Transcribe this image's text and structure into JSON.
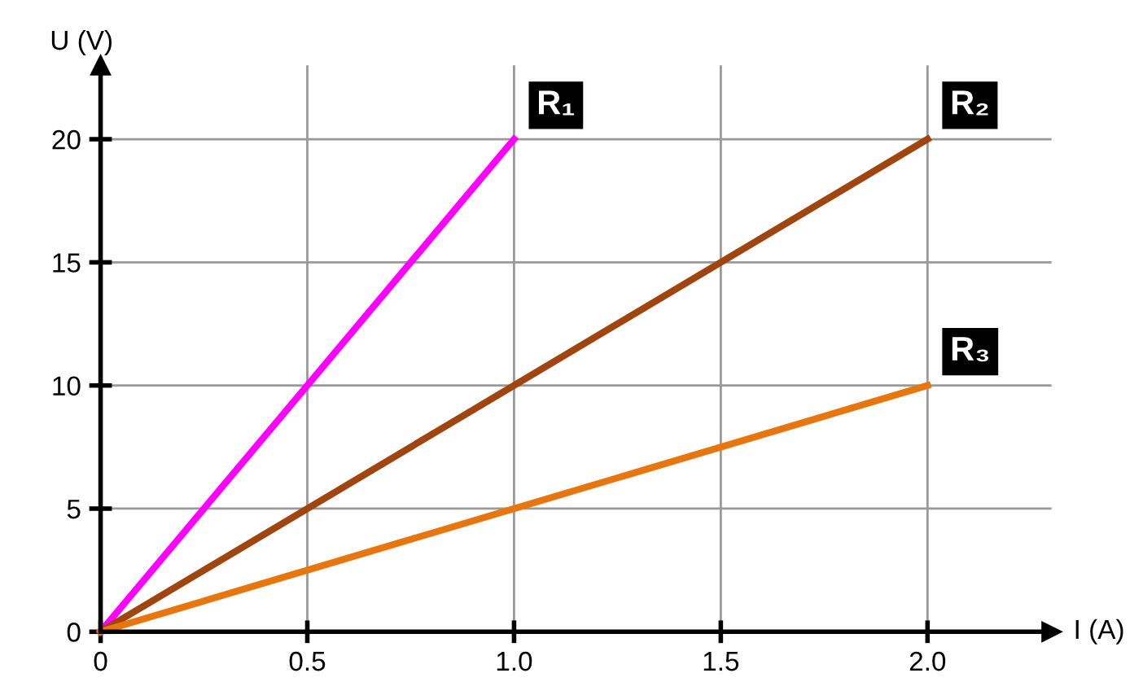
{
  "chart_data": {
    "type": "line",
    "xlabel": "I (A)",
    "ylabel": "U (V)",
    "x": [
      0,
      1,
      2
    ],
    "series": [
      {
        "name": "R₁",
        "color": "#ff00ff",
        "values": [
          0,
          20,
          null
        ]
      },
      {
        "name": "R₂",
        "color": "#a0450f",
        "values": [
          0,
          10,
          20
        ]
      },
      {
        "name": "R₃",
        "color": "#e8760e",
        "values": [
          0,
          5,
          10
        ]
      }
    ],
    "xlim": [
      0,
      2.3
    ],
    "ylim": [
      0,
      23
    ],
    "xticks": [
      0,
      0.5,
      {
        "value": 1,
        "label": "1.0"
      },
      1.5,
      {
        "value": 2,
        "label": "2.0"
      }
    ],
    "yticks": [
      0,
      5,
      10,
      15,
      20
    ],
    "grid": true,
    "legend": false,
    "marker": "none",
    "line_style": "solid"
  }
}
